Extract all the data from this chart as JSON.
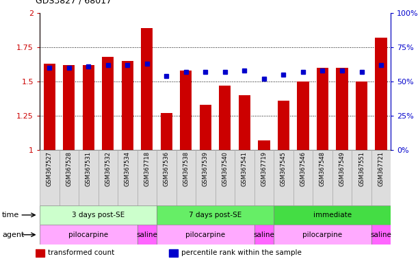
{
  "title": "GDS3827 / 68017",
  "samples": [
    "GSM367527",
    "GSM367528",
    "GSM367531",
    "GSM367532",
    "GSM367534",
    "GSM367718",
    "GSM367536",
    "GSM367538",
    "GSM367539",
    "GSM367540",
    "GSM367541",
    "GSM367719",
    "GSM367545",
    "GSM367546",
    "GSM367548",
    "GSM367549",
    "GSM367551",
    "GSM367721"
  ],
  "bar_values": [
    1.63,
    1.62,
    1.62,
    1.68,
    1.65,
    1.89,
    1.27,
    1.58,
    1.33,
    1.47,
    1.4,
    1.07,
    1.36,
    1.5,
    1.6,
    1.6,
    1.5,
    1.82
  ],
  "dot_values": [
    0.6,
    0.6,
    0.61,
    0.62,
    0.62,
    0.63,
    0.54,
    0.57,
    0.57,
    0.57,
    0.58,
    0.52,
    0.55,
    0.57,
    0.58,
    0.58,
    0.57,
    0.62
  ],
  "bar_color": "#cc0000",
  "dot_color": "#0000cc",
  "ylim_left": [
    1.0,
    2.0
  ],
  "ylim_right": [
    0.0,
    1.0
  ],
  "yticks_left": [
    1.0,
    1.25,
    1.5,
    1.75,
    2.0
  ],
  "ytick_labels_left": [
    "1",
    "1.25",
    "1.5",
    "1.75",
    "2"
  ],
  "yticks_right": [
    0.0,
    0.25,
    0.5,
    0.75,
    1.0
  ],
  "ytick_labels_right": [
    "0%",
    "25%",
    "50%",
    "75%",
    "100%"
  ],
  "gridlines": [
    1.25,
    1.5,
    1.75
  ],
  "time_groups": [
    {
      "label": "3 days post-SE",
      "start": 0,
      "end": 5,
      "color": "#ccffcc"
    },
    {
      "label": "7 days post-SE",
      "start": 6,
      "end": 11,
      "color": "#66ee66"
    },
    {
      "label": "immediate",
      "start": 12,
      "end": 17,
      "color": "#44dd44"
    }
  ],
  "agent_groups": [
    {
      "label": "pilocarpine",
      "start": 0,
      "end": 4,
      "color": "#ffaaff"
    },
    {
      "label": "saline",
      "start": 5,
      "end": 5,
      "color": "#ff66ff"
    },
    {
      "label": "pilocarpine",
      "start": 6,
      "end": 10,
      "color": "#ffaaff"
    },
    {
      "label": "saline",
      "start": 11,
      "end": 11,
      "color": "#ff66ff"
    },
    {
      "label": "pilocarpine",
      "start": 12,
      "end": 16,
      "color": "#ffaaff"
    },
    {
      "label": "saline",
      "start": 17,
      "end": 17,
      "color": "#ff66ff"
    }
  ],
  "legend_items": [
    {
      "label": "transformed count",
      "color": "#cc0000"
    },
    {
      "label": "percentile rank within the sample",
      "color": "#0000cc"
    }
  ],
  "bar_width": 0.6,
  "label_cell_color": "#dddddd",
  "label_cell_edge": "#aaaaaa"
}
